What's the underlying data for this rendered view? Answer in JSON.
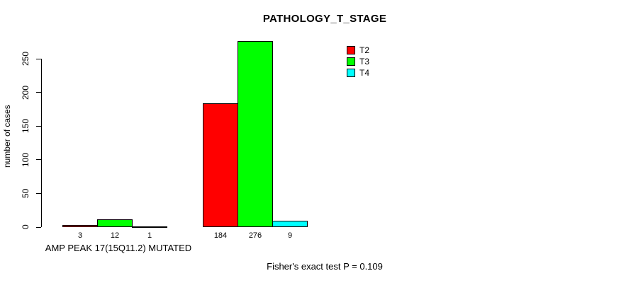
{
  "chart_data": {
    "type": "bar",
    "title": "PATHOLOGY_T_STAGE",
    "ylabel": "number of cases",
    "categories": [
      "AMP PEAK 17(15Q11.2) MUTATED",
      ""
    ],
    "series": [
      {
        "name": "T2",
        "color": "#ff0000",
        "values": [
          3,
          184
        ]
      },
      {
        "name": "T3",
        "color": "#00ff00",
        "values": [
          12,
          276
        ]
      },
      {
        "name": "T4",
        "color": "#00ffff",
        "values": [
          1,
          9
        ]
      }
    ],
    "yticks": [
      0,
      50,
      100,
      150,
      200,
      250
    ],
    "ylim": [
      0,
      276
    ],
    "bar_value_labels": [
      [
        3,
        12,
        1
      ],
      [
        184,
        276,
        9
      ]
    ],
    "grid": false,
    "legend_position": "top-right",
    "annotation": "Fisher's exact test P = 0.109",
    "axis_color": "#000000",
    "background_color": "#ffffff"
  }
}
